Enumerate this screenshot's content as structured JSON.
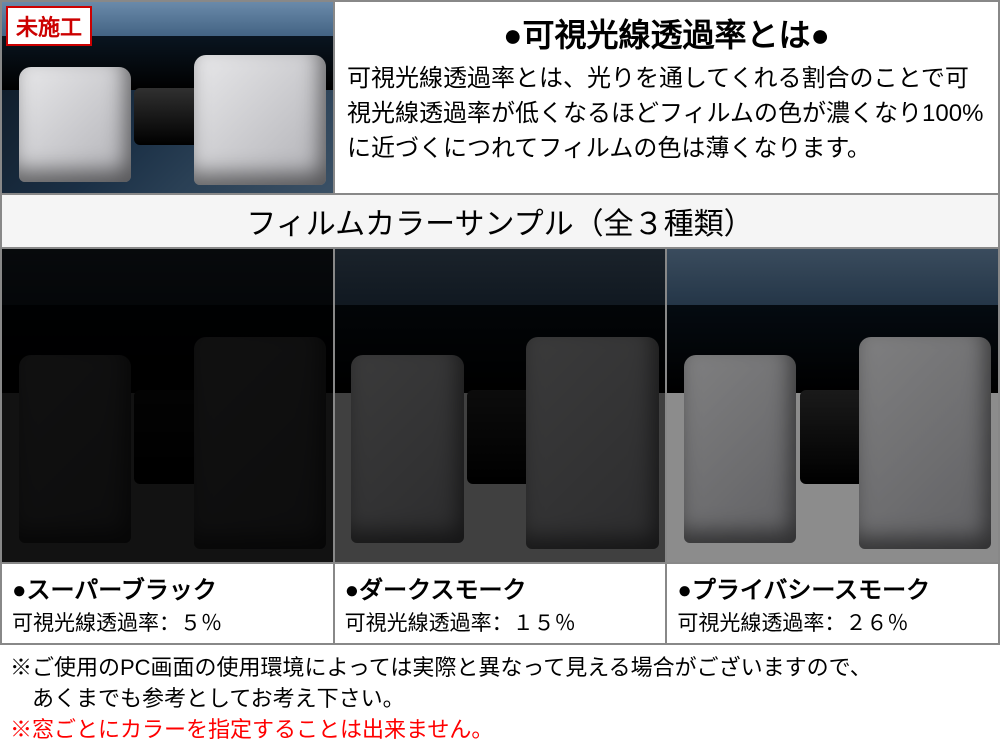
{
  "top": {
    "badge": "未施工",
    "heading": "●可視光線透過率とは●",
    "description": "可視光線透過率とは、光りを通してくれる割合のことで可視光線透過率が低くなるほどフィルムの色が濃くなり100%に近づくにつれてフィルムの色は薄くなります。"
  },
  "samples_header": "フィルムカラーサンプル（全３種類）",
  "samples": [
    {
      "name": "●スーパーブラック",
      "rate_label": "可視光線透過率：５％",
      "tint_opacity": "0.93"
    },
    {
      "name": "●ダークスモーク",
      "rate_label": "可視光線透過率：１５％",
      "tint_opacity": "0.75"
    },
    {
      "name": "●プライバシースモーク",
      "rate_label": "可視光線透過率：２６％",
      "tint_opacity": "0.45"
    }
  ],
  "notes": {
    "line1": "※ご使用のPC画面の使用環境によっては実際と異なって見える場合がございますので、",
    "line2": "　あくまでも参考としてお考え下さい。",
    "line3_red": "※窓ごとにカラーを指定することは出来ません。"
  },
  "colors": {
    "border": "#888888",
    "accent_red": "#ff0000",
    "badge_red": "#c00000"
  }
}
